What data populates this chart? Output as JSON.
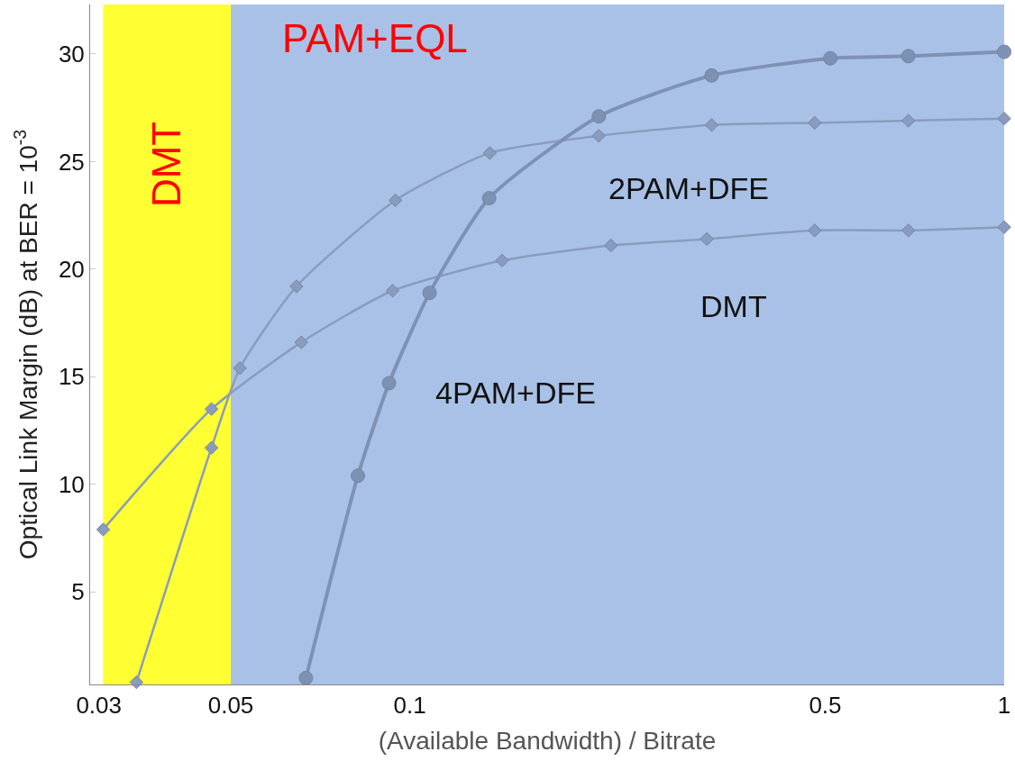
{
  "chart_data": {
    "type": "line",
    "xlabel": "(Available Bandwidth) / Bitrate",
    "ylabel": "Optical Link Margin (dB) at BER = 10$^{-3}$",
    "log": "x",
    "xlim": [
      0.029,
      1
    ],
    "xticks": [
      0.03,
      0.05,
      0.1,
      0.5,
      1
    ],
    "ylim": [
      0.7,
      32.3
    ],
    "yticks": [
      5,
      10,
      15,
      20,
      25,
      30
    ],
    "grid": false,
    "legend": false,
    "line_style": "solid",
    "series": [
      {
        "name": "DMT",
        "color": "#8a9cbd",
        "marker": "diamond",
        "x": [
          0.0305,
          0.0464,
          0.0657,
          0.0936,
          0.143,
          0.218,
          0.316,
          0.48,
          0.69,
          1.0
        ],
        "values": [
          7.9,
          13.5,
          16.6,
          19.0,
          20.4,
          21.1,
          21.4,
          21.8,
          21.8,
          21.95
        ]
      },
      {
        "name": "2PAM+DFE",
        "color": "#8a9cbd",
        "marker": "diamond",
        "x": [
          0.0347,
          0.0464,
          0.0518,
          0.0645,
          0.0946,
          0.1364,
          0.208,
          0.322,
          0.48,
          0.69,
          1.0
        ],
        "values": [
          0.8,
          11.7,
          15.4,
          19.2,
          23.2,
          25.4,
          26.2,
          26.7,
          26.8,
          26.9,
          27.0
        ]
      },
      {
        "name": "4PAM+DFE",
        "color": "#7f91b3",
        "marker": "circle",
        "x": [
          0.0669,
          0.0818,
          0.0923,
          0.108,
          0.136,
          0.208,
          0.322,
          0.51,
          0.69,
          1.0
        ],
        "values": [
          1.0,
          10.4,
          14.7,
          18.9,
          23.3,
          27.1,
          29.0,
          29.8,
          29.9,
          30.1
        ]
      }
    ],
    "bands": [
      {
        "axis": "x",
        "from": 0.0305,
        "to": 0.05,
        "label": "DMT",
        "color": "#ffff33"
      },
      {
        "axis": "x",
        "from": 0.05,
        "to": 1,
        "label": "PAM+EQL",
        "color": "#a9c1e6"
      }
    ]
  }
}
